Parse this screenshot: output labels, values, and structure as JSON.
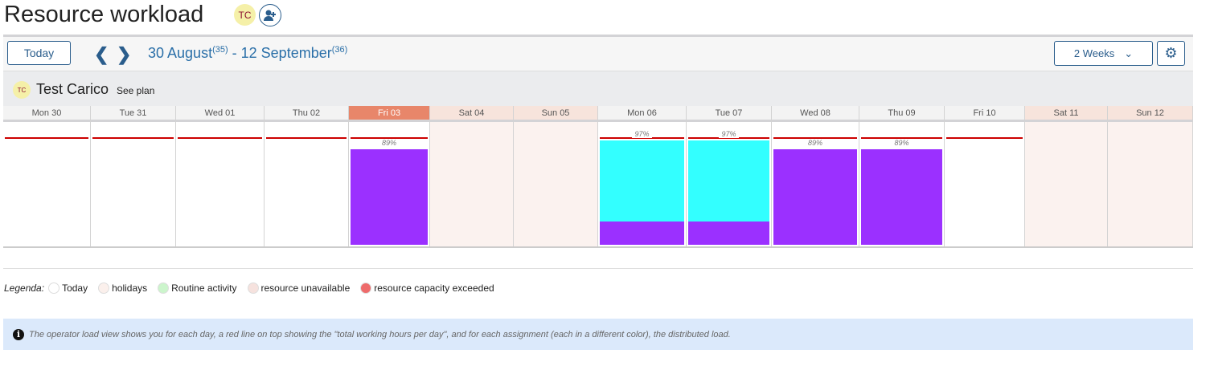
{
  "header": {
    "title": "Resource workload",
    "avatar_initials": "TC",
    "add_user_icon": "user-plus-icon"
  },
  "toolbar": {
    "today_label": "Today",
    "range_start": "30 August",
    "week_start": "(35)",
    "range_sep": " - ",
    "range_end": "12 September",
    "week_end": "(36)",
    "period": "2 Weeks",
    "settings_icon": "gear-icon"
  },
  "resource": {
    "initials": "TC",
    "name": "Test Carico",
    "see_plan": "See plan"
  },
  "colors": {
    "today": "#e8866a",
    "capacity_line": "#cc0000",
    "weekend": "#fbf2ef"
  },
  "chart_data": {
    "type": "bar",
    "days": [
      {
        "label": "Mon 30",
        "kind": "work",
        "load": null,
        "segments": []
      },
      {
        "label": "Tue 31",
        "kind": "work",
        "load": null,
        "segments": []
      },
      {
        "label": "Wed 01",
        "kind": "work",
        "load": null,
        "segments": []
      },
      {
        "label": "Thu 02",
        "kind": "work",
        "load": null,
        "segments": []
      },
      {
        "label": "Fri 03",
        "kind": "today",
        "load": "89%",
        "segments": [
          {
            "value": 89,
            "color": "#9b30ff"
          }
        ]
      },
      {
        "label": "Sat 04",
        "kind": "weekend",
        "load": null,
        "segments": []
      },
      {
        "label": "Sun 05",
        "kind": "weekend",
        "load": null,
        "segments": []
      },
      {
        "label": "Mon 06",
        "kind": "work",
        "load": "97%",
        "segments": [
          {
            "value": 22,
            "color": "#9b30ff"
          },
          {
            "value": 75,
            "color": "#33ffff"
          }
        ]
      },
      {
        "label": "Tue 07",
        "kind": "work",
        "load": "97%",
        "segments": [
          {
            "value": 22,
            "color": "#9b30ff"
          },
          {
            "value": 75,
            "color": "#33ffff"
          }
        ]
      },
      {
        "label": "Wed 08",
        "kind": "work",
        "load": "89%",
        "segments": [
          {
            "value": 89,
            "color": "#9b30ff"
          }
        ]
      },
      {
        "label": "Thu 09",
        "kind": "work",
        "load": "89%",
        "segments": [
          {
            "value": 89,
            "color": "#9b30ff"
          }
        ]
      },
      {
        "label": "Fri 10",
        "kind": "work",
        "load": null,
        "segments": []
      },
      {
        "label": "Sat 11",
        "kind": "weekend",
        "load": null,
        "segments": []
      },
      {
        "label": "Sun 12",
        "kind": "weekend",
        "load": null,
        "segments": []
      }
    ]
  },
  "legend": {
    "title": "Legenda:",
    "items": [
      {
        "label": "Today",
        "color": "#ffffff"
      },
      {
        "label": "holidays",
        "color": "#fbf0ec"
      },
      {
        "label": "Routine activity",
        "color": "#ccf5cc"
      },
      {
        "label": "resource unavailable",
        "color": "#f6e2de"
      },
      {
        "label": "resource capacity exceeded",
        "color": "#ee6b6b"
      }
    ]
  },
  "info": {
    "icon": "info-icon",
    "text": "The operator load view shows you for each day, a red line on top showing the \"total working hours per day\", and for each assignment (each in a different color), the distributed load."
  }
}
